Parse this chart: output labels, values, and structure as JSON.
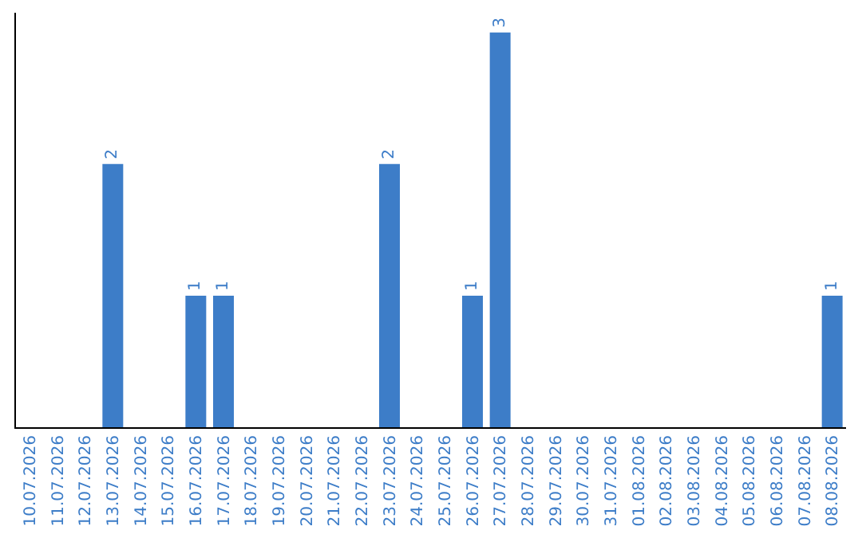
{
  "chart_data": {
    "type": "bar",
    "categories": [
      "10.07.2026",
      "11.07.2026",
      "12.07.2026",
      "13.07.2026",
      "14.07.2026",
      "15.07.2026",
      "16.07.2026",
      "17.07.2026",
      "18.07.2026",
      "19.07.2026",
      "20.07.2026",
      "21.07.2026",
      "22.07.2026",
      "23.07.2026",
      "24.07.2026",
      "25.07.2026",
      "26.07.2026",
      "27.07.2026",
      "28.07.2026",
      "29.07.2026",
      "30.07.2026",
      "31.07.2026",
      "01.08.2026",
      "02.08.2026",
      "03.08.2026",
      "04.08.2026",
      "05.08.2026",
      "06.08.2026",
      "07.08.2026",
      "08.08.2026"
    ],
    "values": [
      0,
      0,
      0,
      2,
      0,
      0,
      1,
      1,
      0,
      0,
      0,
      0,
      0,
      2,
      0,
      0,
      1,
      3,
      0,
      0,
      0,
      0,
      0,
      0,
      0,
      0,
      0,
      0,
      0,
      1
    ],
    "value_labels": [
      null,
      null,
      null,
      "2",
      null,
      null,
      "1",
      "1",
      null,
      null,
      null,
      null,
      null,
      "2",
      null,
      null,
      "1",
      "3",
      null,
      null,
      null,
      null,
      null,
      null,
      null,
      null,
      null,
      null,
      null,
      "1"
    ],
    "color": "#3d7dc8",
    "tick_labels": "x"
  }
}
